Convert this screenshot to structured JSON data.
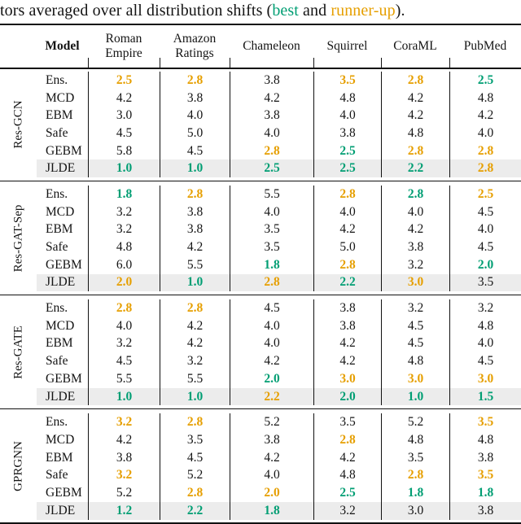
{
  "caption": {
    "prefix": "tors averaged over all distribution shifts (",
    "best": "best",
    "and": " and ",
    "runner_up": "runner-up",
    "suffix": ")."
  },
  "colors": {
    "best": "#009E73",
    "runner_up": "#E69F00",
    "highlight_row_bg": "#ECECEC",
    "rule": "#111111"
  },
  "header": {
    "model": "Model",
    "columns": [
      "Roman\nEmpire",
      "Amazon\nRatings",
      "Chameleon",
      "Squirrel",
      "CoraML",
      "PubMed"
    ]
  },
  "chart_data": {
    "type": "table",
    "title": "tors averaged over all distribution shifts (best and runner-up).",
    "legend": {
      "best_color_meaning": "best",
      "runner_up_color_meaning": "runner-up"
    },
    "columns": [
      "Roman Empire",
      "Amazon Ratings",
      "Chameleon",
      "Squirrel",
      "CoraML",
      "PubMed"
    ]
  },
  "groups": [
    {
      "label": "Res-GCN",
      "rows": [
        {
          "model": "Ens.",
          "highlight": false,
          "values": [
            {
              "v": "2.5",
              "c": "runner_up"
            },
            {
              "v": "2.8",
              "c": "runner_up"
            },
            {
              "v": "3.8",
              "c": ""
            },
            {
              "v": "3.5",
              "c": "runner_up"
            },
            {
              "v": "2.8",
              "c": "runner_up"
            },
            {
              "v": "2.5",
              "c": "best"
            }
          ]
        },
        {
          "model": "MCD",
          "highlight": false,
          "values": [
            {
              "v": "4.2",
              "c": ""
            },
            {
              "v": "3.8",
              "c": ""
            },
            {
              "v": "4.2",
              "c": ""
            },
            {
              "v": "4.8",
              "c": ""
            },
            {
              "v": "4.2",
              "c": ""
            },
            {
              "v": "4.8",
              "c": ""
            }
          ]
        },
        {
          "model": "EBM",
          "highlight": false,
          "values": [
            {
              "v": "3.0",
              "c": ""
            },
            {
              "v": "4.0",
              "c": ""
            },
            {
              "v": "3.8",
              "c": ""
            },
            {
              "v": "4.0",
              "c": ""
            },
            {
              "v": "4.2",
              "c": ""
            },
            {
              "v": "4.2",
              "c": ""
            }
          ]
        },
        {
          "model": "Safe",
          "highlight": false,
          "values": [
            {
              "v": "4.5",
              "c": ""
            },
            {
              "v": "5.0",
              "c": ""
            },
            {
              "v": "4.0",
              "c": ""
            },
            {
              "v": "3.8",
              "c": ""
            },
            {
              "v": "4.8",
              "c": ""
            },
            {
              "v": "4.0",
              "c": ""
            }
          ]
        },
        {
          "model": "GEBM",
          "highlight": false,
          "values": [
            {
              "v": "5.8",
              "c": ""
            },
            {
              "v": "4.5",
              "c": ""
            },
            {
              "v": "2.8",
              "c": "runner_up"
            },
            {
              "v": "2.5",
              "c": "best"
            },
            {
              "v": "2.8",
              "c": "runner_up"
            },
            {
              "v": "2.8",
              "c": "runner_up"
            }
          ]
        },
        {
          "model": "JLDE",
          "highlight": true,
          "values": [
            {
              "v": "1.0",
              "c": "best"
            },
            {
              "v": "1.0",
              "c": "best"
            },
            {
              "v": "2.5",
              "c": "best"
            },
            {
              "v": "2.5",
              "c": "best"
            },
            {
              "v": "2.2",
              "c": "best"
            },
            {
              "v": "2.8",
              "c": "runner_up"
            }
          ]
        }
      ]
    },
    {
      "label": "Res-GAT-Sep",
      "rows": [
        {
          "model": "Ens.",
          "highlight": false,
          "values": [
            {
              "v": "1.8",
              "c": "best"
            },
            {
              "v": "2.8",
              "c": "runner_up"
            },
            {
              "v": "5.5",
              "c": ""
            },
            {
              "v": "2.8",
              "c": "runner_up"
            },
            {
              "v": "2.8",
              "c": "best"
            },
            {
              "v": "2.5",
              "c": "runner_up"
            }
          ]
        },
        {
          "model": "MCD",
          "highlight": false,
          "values": [
            {
              "v": "3.2",
              "c": ""
            },
            {
              "v": "3.8",
              "c": ""
            },
            {
              "v": "4.0",
              "c": ""
            },
            {
              "v": "4.0",
              "c": ""
            },
            {
              "v": "4.0",
              "c": ""
            },
            {
              "v": "4.5",
              "c": ""
            }
          ]
        },
        {
          "model": "EBM",
          "highlight": false,
          "values": [
            {
              "v": "3.2",
              "c": ""
            },
            {
              "v": "3.8",
              "c": ""
            },
            {
              "v": "3.5",
              "c": ""
            },
            {
              "v": "4.2",
              "c": ""
            },
            {
              "v": "4.2",
              "c": ""
            },
            {
              "v": "4.0",
              "c": ""
            }
          ]
        },
        {
          "model": "Safe",
          "highlight": false,
          "values": [
            {
              "v": "4.8",
              "c": ""
            },
            {
              "v": "4.2",
              "c": ""
            },
            {
              "v": "3.5",
              "c": ""
            },
            {
              "v": "5.0",
              "c": ""
            },
            {
              "v": "3.8",
              "c": ""
            },
            {
              "v": "4.5",
              "c": ""
            }
          ]
        },
        {
          "model": "GEBM",
          "highlight": false,
          "values": [
            {
              "v": "6.0",
              "c": ""
            },
            {
              "v": "5.5",
              "c": ""
            },
            {
              "v": "1.8",
              "c": "best"
            },
            {
              "v": "2.8",
              "c": "runner_up"
            },
            {
              "v": "3.2",
              "c": ""
            },
            {
              "v": "2.0",
              "c": "best"
            }
          ]
        },
        {
          "model": "JLDE",
          "highlight": true,
          "values": [
            {
              "v": "2.0",
              "c": "runner_up"
            },
            {
              "v": "1.0",
              "c": "best"
            },
            {
              "v": "2.8",
              "c": "runner_up"
            },
            {
              "v": "2.2",
              "c": "best"
            },
            {
              "v": "3.0",
              "c": "runner_up"
            },
            {
              "v": "3.5",
              "c": ""
            }
          ]
        }
      ]
    },
    {
      "label": "Res-GATE",
      "rows": [
        {
          "model": "Ens.",
          "highlight": false,
          "values": [
            {
              "v": "2.8",
              "c": "runner_up"
            },
            {
              "v": "2.8",
              "c": "runner_up"
            },
            {
              "v": "4.5",
              "c": ""
            },
            {
              "v": "3.8",
              "c": ""
            },
            {
              "v": "3.2",
              "c": ""
            },
            {
              "v": "3.2",
              "c": ""
            }
          ]
        },
        {
          "model": "MCD",
          "highlight": false,
          "values": [
            {
              "v": "4.0",
              "c": ""
            },
            {
              "v": "4.2",
              "c": ""
            },
            {
              "v": "4.0",
              "c": ""
            },
            {
              "v": "3.8",
              "c": ""
            },
            {
              "v": "4.5",
              "c": ""
            },
            {
              "v": "4.8",
              "c": ""
            }
          ]
        },
        {
          "model": "EBM",
          "highlight": false,
          "values": [
            {
              "v": "3.2",
              "c": ""
            },
            {
              "v": "4.2",
              "c": ""
            },
            {
              "v": "4.0",
              "c": ""
            },
            {
              "v": "4.2",
              "c": ""
            },
            {
              "v": "4.5",
              "c": ""
            },
            {
              "v": "4.0",
              "c": ""
            }
          ]
        },
        {
          "model": "Safe",
          "highlight": false,
          "values": [
            {
              "v": "4.5",
              "c": ""
            },
            {
              "v": "3.2",
              "c": ""
            },
            {
              "v": "4.2",
              "c": ""
            },
            {
              "v": "4.2",
              "c": ""
            },
            {
              "v": "4.8",
              "c": ""
            },
            {
              "v": "4.5",
              "c": ""
            }
          ]
        },
        {
          "model": "GEBM",
          "highlight": false,
          "values": [
            {
              "v": "5.5",
              "c": ""
            },
            {
              "v": "5.5",
              "c": ""
            },
            {
              "v": "2.0",
              "c": "best"
            },
            {
              "v": "3.0",
              "c": "runner_up"
            },
            {
              "v": "3.0",
              "c": "runner_up"
            },
            {
              "v": "3.0",
              "c": "runner_up"
            }
          ]
        },
        {
          "model": "JLDE",
          "highlight": true,
          "values": [
            {
              "v": "1.0",
              "c": "best"
            },
            {
              "v": "1.0",
              "c": "best"
            },
            {
              "v": "2.2",
              "c": "runner_up"
            },
            {
              "v": "2.0",
              "c": "best"
            },
            {
              "v": "1.0",
              "c": "best"
            },
            {
              "v": "1.5",
              "c": "best"
            }
          ]
        }
      ]
    },
    {
      "label": "GPRGNN",
      "rows": [
        {
          "model": "Ens.",
          "highlight": false,
          "values": [
            {
              "v": "3.2",
              "c": "runner_up"
            },
            {
              "v": "2.8",
              "c": "runner_up"
            },
            {
              "v": "5.2",
              "c": ""
            },
            {
              "v": "3.5",
              "c": ""
            },
            {
              "v": "5.2",
              "c": ""
            },
            {
              "v": "3.5",
              "c": "runner_up"
            }
          ]
        },
        {
          "model": "MCD",
          "highlight": false,
          "values": [
            {
              "v": "4.2",
              "c": ""
            },
            {
              "v": "3.5",
              "c": ""
            },
            {
              "v": "3.8",
              "c": ""
            },
            {
              "v": "2.8",
              "c": "runner_up"
            },
            {
              "v": "4.8",
              "c": ""
            },
            {
              "v": "4.8",
              "c": ""
            }
          ]
        },
        {
          "model": "EBM",
          "highlight": false,
          "values": [
            {
              "v": "3.8",
              "c": ""
            },
            {
              "v": "4.5",
              "c": ""
            },
            {
              "v": "4.2",
              "c": ""
            },
            {
              "v": "4.2",
              "c": ""
            },
            {
              "v": "3.5",
              "c": ""
            },
            {
              "v": "3.8",
              "c": ""
            }
          ]
        },
        {
          "model": "Safe",
          "highlight": false,
          "values": [
            {
              "v": "3.2",
              "c": "runner_up"
            },
            {
              "v": "5.2",
              "c": ""
            },
            {
              "v": "4.0",
              "c": ""
            },
            {
              "v": "4.8",
              "c": ""
            },
            {
              "v": "2.8",
              "c": "runner_up"
            },
            {
              "v": "3.5",
              "c": "runner_up"
            }
          ]
        },
        {
          "model": "GEBM",
          "highlight": false,
          "values": [
            {
              "v": "5.2",
              "c": ""
            },
            {
              "v": "2.8",
              "c": "runner_up"
            },
            {
              "v": "2.0",
              "c": "runner_up"
            },
            {
              "v": "2.5",
              "c": "best"
            },
            {
              "v": "1.8",
              "c": "best"
            },
            {
              "v": "1.8",
              "c": "best"
            }
          ]
        },
        {
          "model": "JLDE",
          "highlight": true,
          "values": [
            {
              "v": "1.2",
              "c": "best"
            },
            {
              "v": "2.2",
              "c": "best"
            },
            {
              "v": "1.8",
              "c": "best"
            },
            {
              "v": "3.2",
              "c": ""
            },
            {
              "v": "3.0",
              "c": ""
            },
            {
              "v": "3.8",
              "c": ""
            }
          ]
        }
      ]
    }
  ]
}
